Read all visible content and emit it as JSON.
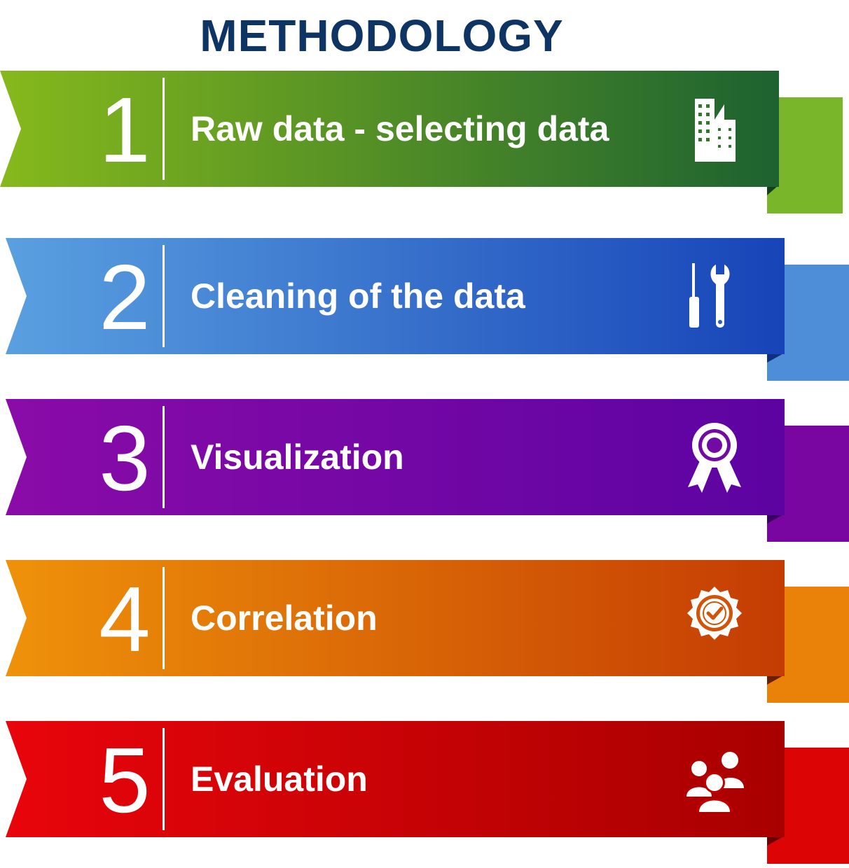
{
  "title": "METHODOLOGY",
  "steps": [
    {
      "number": "1",
      "label": "Raw data - selecting data",
      "icon": "building-icon",
      "colors": {
        "start": "#86b91c",
        "end": "#1d6230",
        "tail": "#7ab62a"
      }
    },
    {
      "number": "2",
      "label": "Cleaning of the data",
      "icon": "tools-icon",
      "colors": {
        "start": "#5aa0e0",
        "end": "#1744b8",
        "tail": "#4e8ed8"
      }
    },
    {
      "number": "3",
      "label": "Visualization",
      "icon": "award-ribbon-icon",
      "colors": {
        "start": "#8a0ba8",
        "end": "#5c03a2",
        "tail": "#7a06a2"
      }
    },
    {
      "number": "4",
      "label": "Correlation",
      "icon": "verified-badge-icon",
      "colors": {
        "start": "#ef920a",
        "end": "#c43c03",
        "tail": "#ea8108"
      }
    },
    {
      "number": "5",
      "label": "Evaluation",
      "icon": "team-people-icon",
      "colors": {
        "start": "#e8050b",
        "end": "#a80000",
        "tail": "#dc0404"
      }
    }
  ]
}
